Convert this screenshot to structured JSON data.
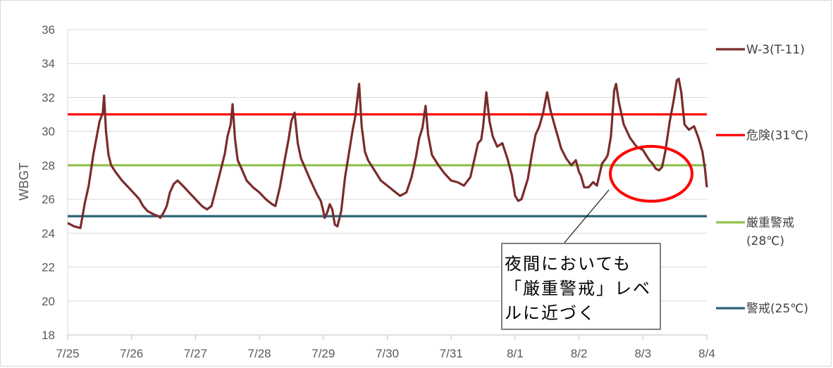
{
  "chart_data": {
    "type": "line",
    "ylabel": "WBGT",
    "xlabel": "",
    "ylim": [
      18,
      36
    ],
    "yticks": [
      18,
      20,
      22,
      24,
      26,
      28,
      30,
      32,
      34,
      36
    ],
    "x_tick_labels": [
      "7/25",
      "7/26",
      "7/27",
      "7/28",
      "7/29",
      "7/30",
      "7/31",
      "8/1",
      "8/2",
      "8/3",
      "8/4"
    ],
    "x_unit": "days from 7/25",
    "grid": "horizontal",
    "legend_position": "right",
    "series": [
      {
        "name": "W-3(T-11)",
        "color": "#7b2c2c",
        "points": [
          [
            0.0,
            24.6
          ],
          [
            0.1,
            24.4
          ],
          [
            0.2,
            24.3
          ],
          [
            0.27,
            25.8
          ],
          [
            0.33,
            26.8
          ],
          [
            0.4,
            28.6
          ],
          [
            0.46,
            29.8
          ],
          [
            0.5,
            30.6
          ],
          [
            0.55,
            31.1
          ],
          [
            0.57,
            32.1
          ],
          [
            0.6,
            30.0
          ],
          [
            0.64,
            28.6
          ],
          [
            0.68,
            28.0
          ],
          [
            0.75,
            27.6
          ],
          [
            0.85,
            27.1
          ],
          [
            0.95,
            26.7
          ],
          [
            1.05,
            26.3
          ],
          [
            1.12,
            26.0
          ],
          [
            1.18,
            25.6
          ],
          [
            1.25,
            25.3
          ],
          [
            1.35,
            25.1
          ],
          [
            1.42,
            25.0
          ],
          [
            1.45,
            24.9
          ],
          [
            1.5,
            25.2
          ],
          [
            1.55,
            25.6
          ],
          [
            1.6,
            26.4
          ],
          [
            1.66,
            26.9
          ],
          [
            1.72,
            27.1
          ],
          [
            1.8,
            26.8
          ],
          [
            1.9,
            26.4
          ],
          [
            2.0,
            26.0
          ],
          [
            2.1,
            25.6
          ],
          [
            2.18,
            25.4
          ],
          [
            2.25,
            25.6
          ],
          [
            2.32,
            26.6
          ],
          [
            2.4,
            27.8
          ],
          [
            2.46,
            28.7
          ],
          [
            2.5,
            29.7
          ],
          [
            2.55,
            30.4
          ],
          [
            2.58,
            31.6
          ],
          [
            2.62,
            29.5
          ],
          [
            2.66,
            28.3
          ],
          [
            2.72,
            27.8
          ],
          [
            2.8,
            27.1
          ],
          [
            2.9,
            26.7
          ],
          [
            3.0,
            26.4
          ],
          [
            3.1,
            26.0
          ],
          [
            3.2,
            25.7
          ],
          [
            3.25,
            25.6
          ],
          [
            3.32,
            26.7
          ],
          [
            3.4,
            28.4
          ],
          [
            3.46,
            29.6
          ],
          [
            3.5,
            30.6
          ],
          [
            3.55,
            31.1
          ],
          [
            3.6,
            29.3
          ],
          [
            3.65,
            28.4
          ],
          [
            3.72,
            27.8
          ],
          [
            3.8,
            27.1
          ],
          [
            3.9,
            26.3
          ],
          [
            3.96,
            25.9
          ],
          [
            4.0,
            25.3
          ],
          [
            4.02,
            24.9
          ],
          [
            4.06,
            25.2
          ],
          [
            4.1,
            25.7
          ],
          [
            4.14,
            25.4
          ],
          [
            4.18,
            24.5
          ],
          [
            4.22,
            24.4
          ],
          [
            4.28,
            25.3
          ],
          [
            4.34,
            27.3
          ],
          [
            4.4,
            28.7
          ],
          [
            4.46,
            30.1
          ],
          [
            4.5,
            30.9
          ],
          [
            4.56,
            32.8
          ],
          [
            4.6,
            30.3
          ],
          [
            4.65,
            28.8
          ],
          [
            4.7,
            28.3
          ],
          [
            4.8,
            27.7
          ],
          [
            4.9,
            27.1
          ],
          [
            5.0,
            26.8
          ],
          [
            5.1,
            26.5
          ],
          [
            5.2,
            26.2
          ],
          [
            5.3,
            26.4
          ],
          [
            5.38,
            27.3
          ],
          [
            5.45,
            28.5
          ],
          [
            5.5,
            29.6
          ],
          [
            5.55,
            30.2
          ],
          [
            5.6,
            31.5
          ],
          [
            5.64,
            29.8
          ],
          [
            5.7,
            28.6
          ],
          [
            5.8,
            28.0
          ],
          [
            5.9,
            27.5
          ],
          [
            6.0,
            27.1
          ],
          [
            6.1,
            27.0
          ],
          [
            6.2,
            26.8
          ],
          [
            6.3,
            27.3
          ],
          [
            6.36,
            28.3
          ],
          [
            6.42,
            29.3
          ],
          [
            6.47,
            29.5
          ],
          [
            6.5,
            30.3
          ],
          [
            6.55,
            32.3
          ],
          [
            6.6,
            30.6
          ],
          [
            6.65,
            29.7
          ],
          [
            6.72,
            29.1
          ],
          [
            6.8,
            29.3
          ],
          [
            6.88,
            28.4
          ],
          [
            6.95,
            27.4
          ],
          [
            7.0,
            26.2
          ],
          [
            7.05,
            25.9
          ],
          [
            7.1,
            26.0
          ],
          [
            7.15,
            26.6
          ],
          [
            7.2,
            27.2
          ],
          [
            7.26,
            28.6
          ],
          [
            7.32,
            29.8
          ],
          [
            7.38,
            30.3
          ],
          [
            7.44,
            31.1
          ],
          [
            7.5,
            32.3
          ],
          [
            7.55,
            31.3
          ],
          [
            7.6,
            30.6
          ],
          [
            7.66,
            29.8
          ],
          [
            7.72,
            29.0
          ],
          [
            7.8,
            28.4
          ],
          [
            7.88,
            28.0
          ],
          [
            7.95,
            28.3
          ],
          [
            8.0,
            27.6
          ],
          [
            8.03,
            27.4
          ],
          [
            8.08,
            26.7
          ],
          [
            8.15,
            26.7
          ],
          [
            8.22,
            27.0
          ],
          [
            8.28,
            26.8
          ],
          [
            8.33,
            27.6
          ],
          [
            8.36,
            28.1
          ],
          [
            8.42,
            28.4
          ],
          [
            8.45,
            28.6
          ],
          [
            8.5,
            29.7
          ],
          [
            8.55,
            32.4
          ],
          [
            8.58,
            32.8
          ],
          [
            8.62,
            31.8
          ],
          [
            8.7,
            30.4
          ],
          [
            8.8,
            29.6
          ],
          [
            8.9,
            29.1
          ],
          [
            9.0,
            28.9
          ],
          [
            9.05,
            28.6
          ],
          [
            9.1,
            28.3
          ],
          [
            9.15,
            28.1
          ],
          [
            9.2,
            27.8
          ],
          [
            9.25,
            27.7
          ],
          [
            9.3,
            27.9
          ],
          [
            9.35,
            28.8
          ],
          [
            9.42,
            30.6
          ],
          [
            9.48,
            31.8
          ],
          [
            9.53,
            33.0
          ],
          [
            9.56,
            33.1
          ],
          [
            9.6,
            32.3
          ],
          [
            9.65,
            30.4
          ],
          [
            9.72,
            30.1
          ],
          [
            9.8,
            30.3
          ],
          [
            9.87,
            29.6
          ],
          [
            9.93,
            28.8
          ],
          [
            9.97,
            27.8
          ],
          [
            10.0,
            26.7
          ]
        ]
      },
      {
        "name": "危険(31℃)",
        "color": "#ff0000",
        "y": 31
      },
      {
        "name": "厳重警戒",
        "name_line2": "(28℃)",
        "color": "#92c050",
        "y": 28
      },
      {
        "name": "警戒(25℃)",
        "color": "#2a6478",
        "y": 25
      }
    ],
    "annotation": {
      "lines": [
        "夜間においても",
        "「厳重警戒」レベ",
        "ルに近づく"
      ]
    }
  }
}
